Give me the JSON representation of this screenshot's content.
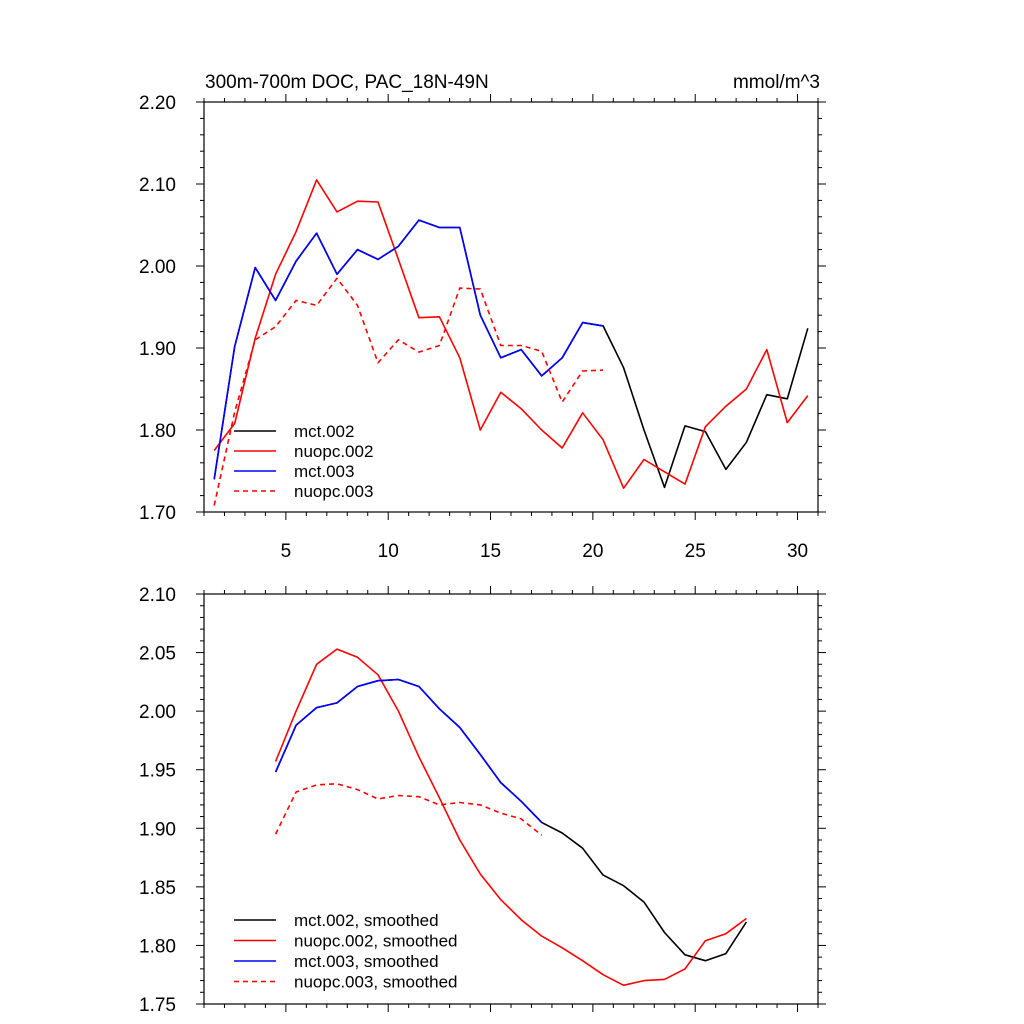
{
  "chart_data": [
    {
      "type": "line",
      "title": "300m-700m DOC, PAC_18N-49N",
      "units": "mmol/m^3",
      "xlim": [
        1,
        31
      ],
      "ylim": [
        1.7,
        2.2
      ],
      "x_ticks": [
        5,
        10,
        15,
        20,
        25,
        30
      ],
      "x_tick_labels": [
        "5",
        "10",
        "15",
        "20",
        "25",
        "30"
      ],
      "y_ticks": [
        1.7,
        1.8,
        1.9,
        2.0,
        2.1,
        2.2
      ],
      "y_tick_labels": [
        "1.70",
        "1.80",
        "1.90",
        "2.00",
        "2.10",
        "2.20"
      ],
      "legend_position": "bottom-left",
      "series": [
        {
          "name": "mct.002",
          "color": "#000000",
          "dash": "solid",
          "x": [
            1.5,
            2.5,
            3.5,
            4.5,
            5.5,
            6.5,
            7.5,
            8.5,
            9.5,
            10.5,
            11.5,
            12.5,
            13.5,
            14.5,
            15.5,
            16.5,
            17.5,
            18.5,
            19.5,
            20.5,
            21.5,
            22.5,
            23.5,
            24.5,
            25.5,
            26.5,
            27.5,
            28.5,
            29.5,
            30.5
          ],
          "values": [
            1.74,
            1.902,
            1.998,
            1.958,
            2.006,
            2.04,
            1.99,
            2.02,
            2.008,
            2.024,
            2.056,
            2.047,
            2.047,
            1.94,
            1.888,
            1.898,
            1.866,
            1.888,
            1.931,
            1.927,
            1.876,
            1.8,
            1.73,
            1.805,
            1.798,
            1.752,
            1.785,
            1.843,
            1.838,
            1.924
          ]
        },
        {
          "name": "nuopc.002",
          "color": "#ff0000",
          "dash": "solid",
          "x": [
            1.5,
            2.5,
            3.5,
            4.5,
            5.5,
            6.5,
            7.5,
            8.5,
            9.5,
            10.5,
            11.5,
            12.5,
            13.5,
            14.5,
            15.5,
            16.5,
            17.5,
            18.5,
            19.5,
            20.5,
            21.5,
            22.5,
            23.5,
            24.5,
            25.5,
            26.5,
            27.5,
            28.5,
            29.5,
            30.5
          ],
          "values": [
            1.775,
            1.808,
            1.912,
            1.99,
            2.042,
            2.105,
            2.066,
            2.079,
            2.078,
            2.008,
            1.937,
            1.938,
            1.888,
            1.8,
            1.846,
            1.826,
            1.8,
            1.778,
            1.821,
            1.788,
            1.729,
            1.764,
            1.749,
            1.734,
            1.804,
            1.829,
            1.85,
            1.898,
            1.809,
            1.842
          ]
        },
        {
          "name": "mct.003",
          "color": "#0000ff",
          "dash": "solid",
          "x": [
            1.5,
            2.5,
            3.5,
            4.5,
            5.5,
            6.5,
            7.5,
            8.5,
            9.5,
            10.5,
            11.5,
            12.5,
            13.5,
            14.5,
            15.5,
            16.5,
            17.5,
            18.5,
            19.5,
            20.5
          ],
          "values": [
            1.74,
            1.902,
            1.998,
            1.958,
            2.006,
            2.04,
            1.99,
            2.02,
            2.008,
            2.024,
            2.056,
            2.047,
            2.047,
            1.94,
            1.888,
            1.898,
            1.866,
            1.888,
            1.931,
            1.927
          ]
        },
        {
          "name": "nuopc.003",
          "color": "#ff0000",
          "dash": "dashed",
          "x": [
            1.5,
            2.5,
            3.5,
            4.5,
            5.5,
            6.5,
            7.5,
            8.5,
            9.5,
            10.5,
            11.5,
            12.5,
            13.5,
            14.5,
            15.5,
            16.5,
            17.5,
            18.5,
            19.5,
            20.5
          ],
          "values": [
            1.708,
            1.822,
            1.91,
            1.926,
            1.958,
            1.952,
            1.985,
            1.952,
            1.882,
            1.91,
            1.895,
            1.903,
            1.973,
            1.972,
            1.903,
            1.903,
            1.896,
            1.834,
            1.872,
            1.873
          ]
        }
      ]
    },
    {
      "type": "line",
      "title": "",
      "xlim": [
        1,
        31
      ],
      "ylim": [
        1.75,
        2.1
      ],
      "x_ticks": [
        5,
        10,
        15,
        20,
        25,
        30
      ],
      "y_ticks": [
        1.75,
        1.8,
        1.85,
        1.9,
        1.95,
        2.0,
        2.05,
        2.1
      ],
      "y_tick_labels": [
        "1.75",
        "1.80",
        "1.85",
        "1.90",
        "1.95",
        "2.00",
        "2.05",
        "2.10"
      ],
      "legend_position": "bottom-left",
      "series": [
        {
          "name": "mct.002, smoothed",
          "color": "#000000",
          "dash": "solid",
          "x": [
            4.5,
            5.5,
            6.5,
            7.5,
            8.5,
            9.5,
            10.5,
            11.5,
            12.5,
            13.5,
            14.5,
            15.5,
            16.5,
            17.5,
            18.5,
            19.5,
            20.5,
            21.5,
            22.5,
            23.5,
            24.5,
            25.5,
            26.5,
            27.5
          ],
          "values": [
            1.948,
            1.988,
            2.003,
            2.007,
            2.021,
            2.026,
            2.027,
            2.021,
            2.002,
            1.986,
            1.963,
            1.939,
            1.923,
            1.905,
            1.896,
            1.883,
            1.86,
            1.851,
            1.837,
            1.811,
            1.792,
            1.787,
            1.793,
            1.82
          ]
        },
        {
          "name": "nuopc.002, smoothed",
          "color": "#ff0000",
          "dash": "solid",
          "x": [
            4.5,
            5.5,
            6.5,
            7.5,
            8.5,
            9.5,
            10.5,
            11.5,
            12.5,
            13.5,
            14.5,
            15.5,
            16.5,
            17.5,
            18.5,
            19.5,
            20.5,
            21.5,
            22.5,
            23.5,
            24.5,
            25.5,
            26.5,
            27.5
          ],
          "values": [
            1.957,
            2.0,
            2.04,
            2.053,
            2.046,
            2.031,
            2.0,
            1.961,
            1.926,
            1.89,
            1.861,
            1.839,
            1.822,
            1.808,
            1.798,
            1.787,
            1.775,
            1.766,
            1.77,
            1.771,
            1.78,
            1.804,
            1.81,
            1.823
          ]
        },
        {
          "name": "mct.003, smoothed",
          "color": "#0000ff",
          "dash": "solid",
          "x": [
            4.5,
            5.5,
            6.5,
            7.5,
            8.5,
            9.5,
            10.5,
            11.5,
            12.5,
            13.5,
            14.5,
            15.5,
            16.5,
            17.5
          ],
          "values": [
            1.948,
            1.988,
            2.003,
            2.007,
            2.021,
            2.026,
            2.027,
            2.021,
            2.002,
            1.986,
            1.963,
            1.939,
            1.923,
            1.905
          ]
        },
        {
          "name": "nuopc.003, smoothed",
          "color": "#ff0000",
          "dash": "dashed",
          "x": [
            4.5,
            5.5,
            6.5,
            7.5,
            8.5,
            9.5,
            10.5,
            11.5,
            12.5,
            13.5,
            14.5,
            15.5,
            16.5,
            17.5
          ],
          "values": [
            1.895,
            1.931,
            1.937,
            1.938,
            1.933,
            1.925,
            1.928,
            1.927,
            1.92,
            1.922,
            1.92,
            1.913,
            1.908,
            1.894
          ]
        }
      ]
    }
  ]
}
